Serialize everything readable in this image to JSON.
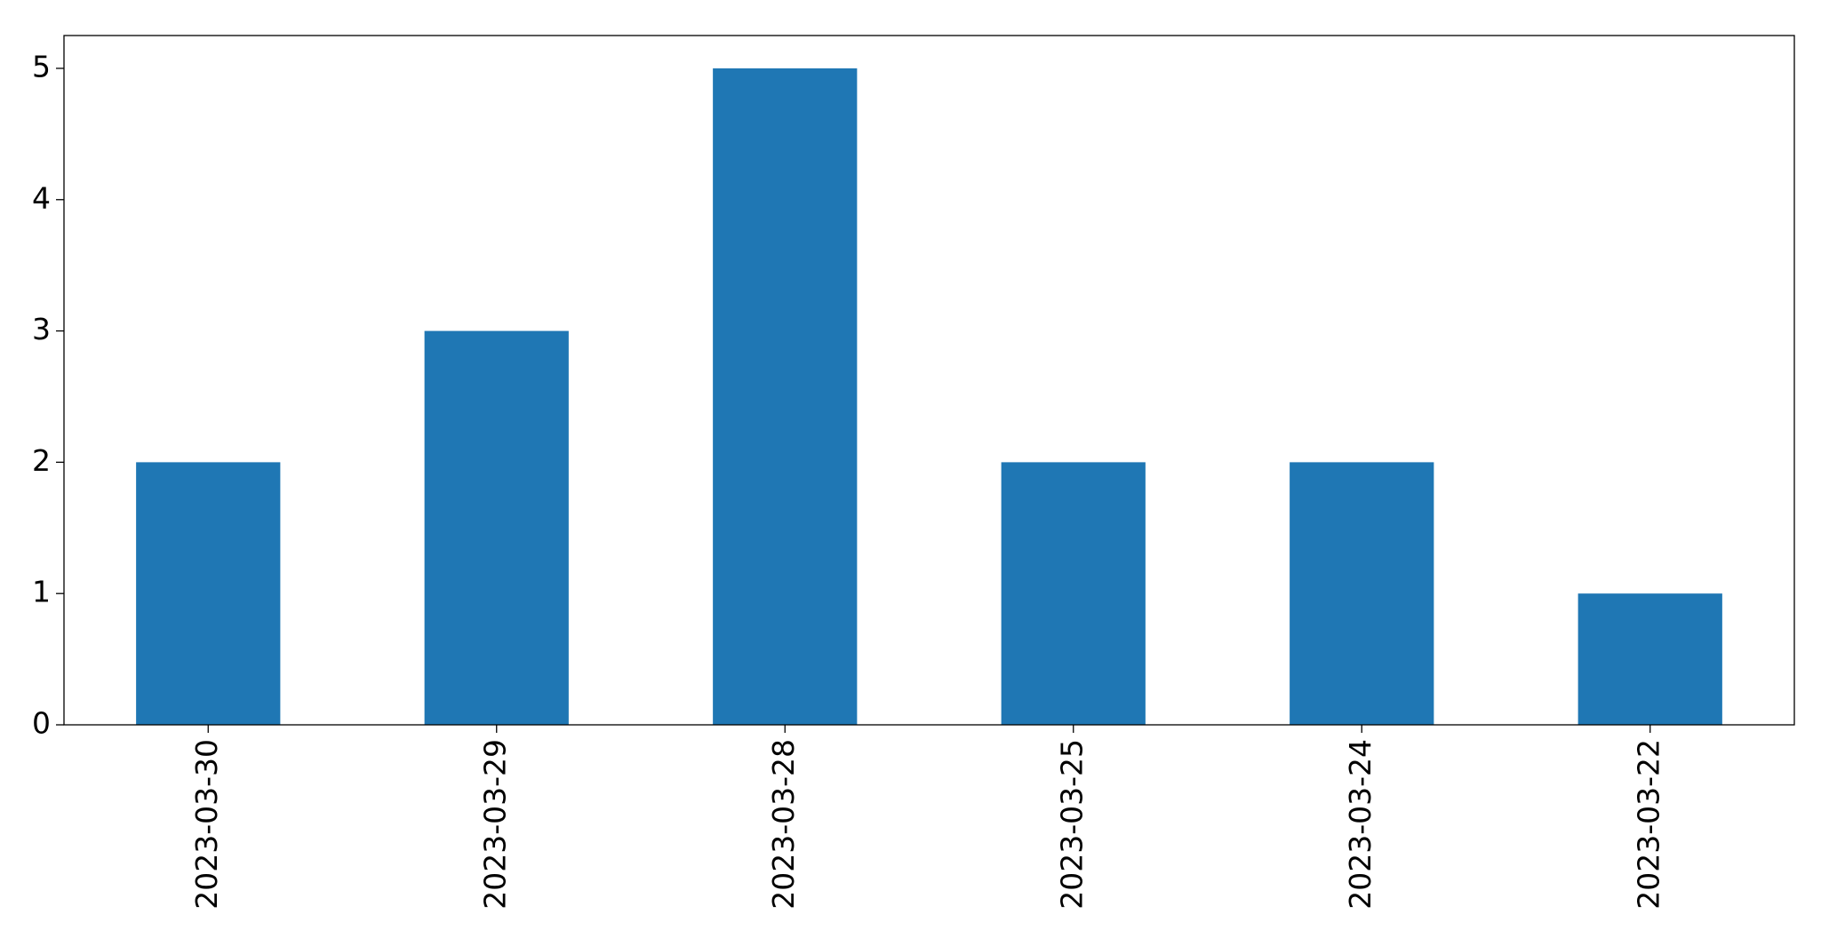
{
  "chart_data": {
    "type": "bar",
    "title": "",
    "xlabel": "",
    "ylabel": "",
    "categories": [
      "2023-03-30",
      "2023-03-29",
      "2023-03-28",
      "2023-03-25",
      "2023-03-24",
      "2023-03-22"
    ],
    "series": [
      {
        "values": [
          2,
          3,
          5,
          2,
          2,
          1
        ],
        "color": "#1f77b4"
      }
    ],
    "ylim": [
      0,
      5.25
    ],
    "yticks": [
      0,
      1,
      2,
      3,
      4,
      5
    ],
    "grid": false,
    "legend": "none"
  }
}
